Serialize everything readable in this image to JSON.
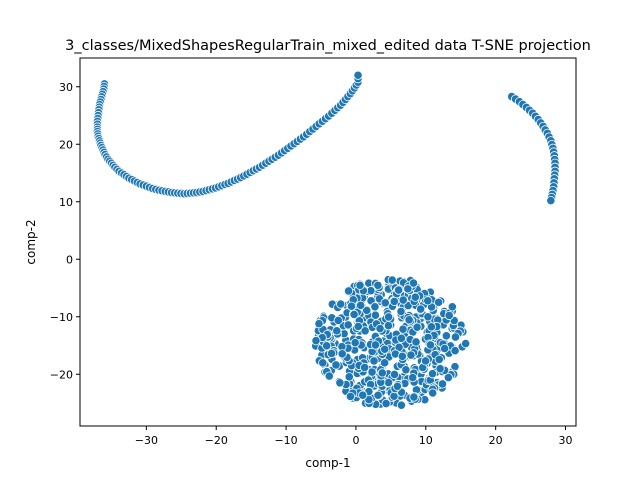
{
  "chart_data": {
    "type": "scatter",
    "title": "3_classes/MixedShapesRegularTrain_mixed_edited data T-SNE projection",
    "xlabel": "comp-1",
    "ylabel": "comp-2",
    "xlim": [
      -39.5,
      31.5
    ],
    "ylim": [
      -29,
      35
    ],
    "xticks": [
      -30,
      -20,
      -10,
      0,
      10,
      20,
      30
    ],
    "yticks": [
      -20,
      -10,
      0,
      10,
      20,
      30
    ],
    "grid": false,
    "legend": "none",
    "marker_color": "#1f77b4",
    "marker_edge": "#ffffff",
    "series": [
      {
        "points": [
          [
            -36.0,
            30.5
          ],
          [
            -36.1,
            29.6
          ],
          [
            -36.3,
            28.7
          ],
          [
            -36.5,
            27.8
          ],
          [
            -36.7,
            26.9
          ],
          [
            -36.8,
            26.0
          ],
          [
            -36.9,
            25.0
          ],
          [
            -37.0,
            24.0
          ],
          [
            -37.0,
            23.0
          ],
          [
            -37.0,
            22.2
          ],
          [
            -36.9,
            21.4
          ],
          [
            -36.7,
            20.6
          ],
          [
            -36.5,
            19.8
          ],
          [
            -36.2,
            19.0
          ],
          [
            -35.9,
            18.2
          ],
          [
            -35.5,
            17.4
          ],
          [
            -35.0,
            16.7
          ],
          [
            -34.5,
            16.0
          ],
          [
            -33.9,
            15.3
          ],
          [
            -33.2,
            14.7
          ],
          [
            -32.5,
            14.1
          ],
          [
            -31.7,
            13.6
          ],
          [
            -30.9,
            13.1
          ],
          [
            -30.0,
            12.7
          ],
          [
            -29.1,
            12.3
          ],
          [
            -28.2,
            12.0
          ],
          [
            -27.3,
            11.8
          ],
          [
            -26.4,
            11.6
          ],
          [
            -25.5,
            11.5
          ],
          [
            -24.6,
            11.4
          ],
          [
            -23.7,
            11.5
          ],
          [
            -22.8,
            11.6
          ],
          [
            -21.9,
            11.8
          ],
          [
            -21.0,
            12.1
          ],
          [
            -20.1,
            12.4
          ],
          [
            -19.2,
            12.8
          ],
          [
            -18.3,
            13.2
          ],
          [
            -17.4,
            13.7
          ],
          [
            -16.5,
            14.2
          ],
          [
            -15.6,
            14.8
          ],
          [
            -14.7,
            15.4
          ],
          [
            -13.8,
            16.0
          ],
          [
            -12.9,
            16.7
          ],
          [
            -12.0,
            17.4
          ],
          [
            -11.1,
            18.1
          ],
          [
            -10.2,
            18.9
          ],
          [
            -9.3,
            19.7
          ],
          [
            -8.4,
            20.5
          ],
          [
            -7.5,
            21.3
          ],
          [
            -6.6,
            22.2
          ],
          [
            -5.7,
            23.1
          ],
          [
            -4.8,
            24.0
          ],
          [
            -3.9,
            24.9
          ],
          [
            -3.0,
            25.9
          ],
          [
            -2.2,
            26.8
          ],
          [
            -1.5,
            27.8
          ],
          [
            -0.8,
            28.8
          ],
          [
            -0.2,
            29.8
          ],
          [
            0.3,
            30.8
          ],
          [
            0.3,
            32.0
          ],
          [
            22.3,
            28.3
          ],
          [
            23.4,
            27.4
          ],
          [
            24.4,
            26.4
          ],
          [
            25.3,
            25.4
          ],
          [
            26.1,
            24.3
          ],
          [
            26.8,
            23.1
          ],
          [
            27.4,
            21.9
          ],
          [
            27.9,
            20.6
          ],
          [
            28.2,
            19.3
          ],
          [
            28.4,
            18.0
          ],
          [
            28.5,
            16.7
          ],
          [
            28.5,
            15.3
          ],
          [
            28.4,
            14.0
          ],
          [
            28.3,
            12.6
          ],
          [
            28.1,
            11.3
          ],
          [
            27.9,
            10.2
          ]
        ]
      }
    ],
    "blob": {
      "center": [
        5.0,
        -14.5
      ],
      "radius_x": 10.8,
      "radius_y": 11.2,
      "count": 560,
      "notch": {
        "center": [
          12.5,
          -3.0
        ],
        "radius": 3.8
      }
    }
  }
}
